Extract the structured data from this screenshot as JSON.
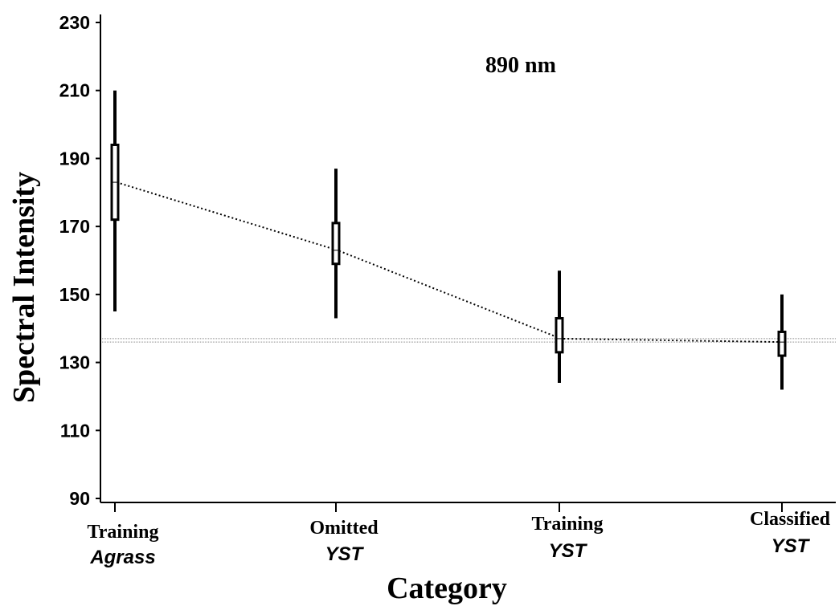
{
  "chart_data": {
    "type": "box",
    "annotation": "890 nm",
    "xlabel": "Category",
    "ylabel": "Spectral Intensity",
    "ylim": [
      90,
      230
    ],
    "yticks": [
      90,
      110,
      130,
      150,
      170,
      190,
      210,
      230
    ],
    "categories": [
      {
        "line1": "Training",
        "line2": "Agrass"
      },
      {
        "line1": "Omitted",
        "line2": "YST"
      },
      {
        "line1": "Training",
        "line2": "YST"
      },
      {
        "line1": "Classified",
        "line2": "YST"
      }
    ],
    "series": [
      {
        "whisker_low": 145,
        "box_low": 172,
        "median": 183,
        "box_high": 194,
        "whisker_high": 210
      },
      {
        "whisker_low": 143,
        "box_low": 159,
        "median": 163,
        "box_high": 171,
        "whisker_high": 187
      },
      {
        "whisker_low": 124,
        "box_low": 133,
        "median": 137,
        "box_high": 143,
        "whisker_high": 157
      },
      {
        "whisker_low": 122,
        "box_low": 132,
        "median": 136,
        "box_high": 139,
        "whisker_high": 150
      }
    ],
    "reference_lines": [
      136,
      137
    ],
    "grid": false,
    "legend": "none",
    "colors": {
      "ink": "#000000",
      "reference": "#888888"
    }
  }
}
